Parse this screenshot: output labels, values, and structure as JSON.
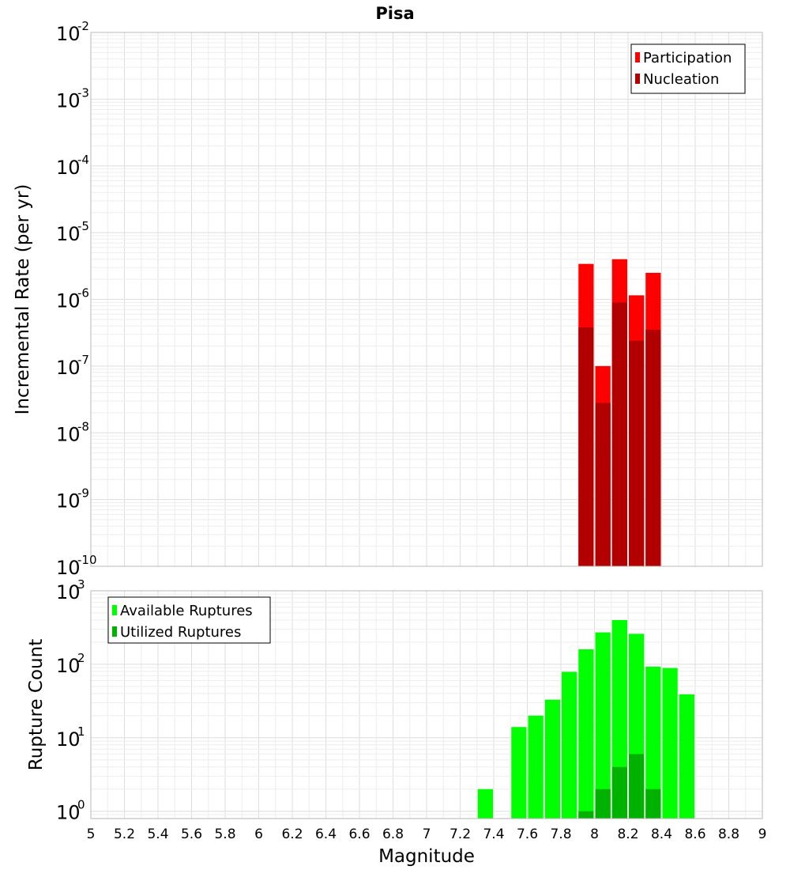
{
  "chart_data": {
    "title": "Pisa",
    "type": "bar",
    "xlabel": "Magnitude",
    "xlim": [
      5,
      9
    ],
    "xticks": [
      "5",
      "5.2",
      "5.4",
      "5.6",
      "5.8",
      "6",
      "6.2",
      "6.4",
      "6.6",
      "6.8",
      "7",
      "7.2",
      "7.4",
      "7.6",
      "7.8",
      "8",
      "8.2",
      "8.4",
      "8.6",
      "8.8",
      "9"
    ],
    "panels": [
      {
        "id": "rate",
        "ylabel": "Incremental Rate (per yr)",
        "yscale": "log",
        "ylim_exp": [
          -10,
          -2
        ],
        "ytick_base": "10",
        "ytick_exps": [
          "-2",
          "-3",
          "-4",
          "-5",
          "-6",
          "-7",
          "-8",
          "-9",
          "-10"
        ],
        "legend": {
          "position": "top-right",
          "entries": [
            "Participation",
            "Nucleation"
          ]
        },
        "series": [
          {
            "name": "Participation",
            "color": "#ff0000",
            "x": [
              7.95,
              8.05,
              8.15,
              8.25,
              8.35
            ],
            "values": [
              3.4e-06,
              1e-07,
              4e-06,
              1.15e-06,
              2.5e-06
            ]
          },
          {
            "name": "Nucleation",
            "color": "#b20000",
            "x": [
              7.95,
              8.05,
              8.15,
              8.25,
              8.35
            ],
            "values": [
              3.8e-07,
              2.8e-08,
              9e-07,
              2.4e-07,
              3.5e-07
            ]
          }
        ]
      },
      {
        "id": "count",
        "ylabel": "Rupture Count",
        "yscale": "log",
        "ylim_exp": [
          -0.1,
          3
        ],
        "ytick_base": "10",
        "ytick_exps": [
          "0",
          "1",
          "2",
          "3"
        ],
        "legend": {
          "position": "top-left",
          "entries": [
            "Available Ruptures",
            "Utilized Ruptures"
          ]
        },
        "series": [
          {
            "name": "Available Ruptures",
            "color": "#00ff00",
            "x": [
              7.35,
              7.55,
              7.65,
              7.75,
              7.85,
              7.95,
              8.05,
              8.15,
              8.25,
              8.35,
              8.45,
              8.55
            ],
            "values": [
              2,
              14,
              20,
              33,
              79,
              160,
              272,
              400,
              260,
              93,
              89,
              39
            ]
          },
          {
            "name": "Utilized Ruptures",
            "color": "#00b200",
            "x": [
              7.95,
              8.05,
              8.15,
              8.25,
              8.35
            ],
            "values": [
              1,
              2,
              4,
              6,
              2
            ]
          }
        ]
      }
    ]
  }
}
